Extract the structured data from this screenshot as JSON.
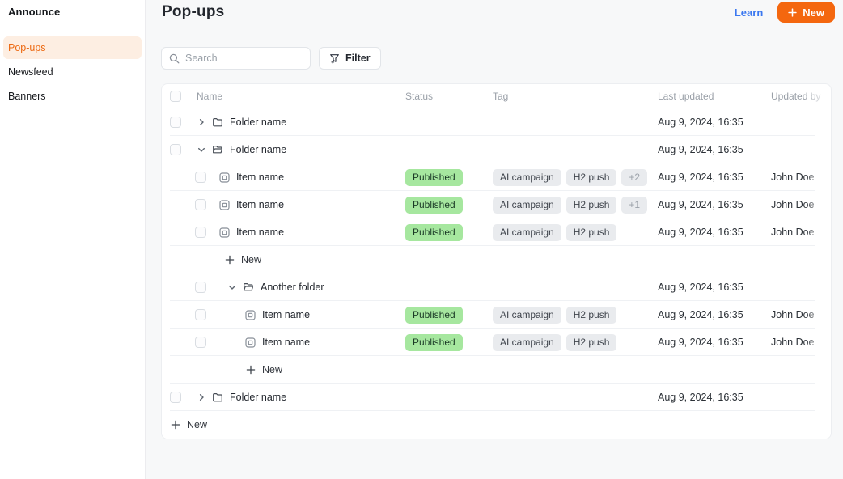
{
  "sidebar": {
    "app_title": "Announce",
    "items": [
      {
        "label": "Pop-ups",
        "active": true
      },
      {
        "label": "Newsfeed",
        "active": false
      },
      {
        "label": "Banners",
        "active": false
      }
    ]
  },
  "header": {
    "title": "Pop-ups",
    "learn_label": "Learn",
    "new_button_label": "New"
  },
  "toolbar": {
    "search_placeholder": "Search",
    "filter_label": "Filter"
  },
  "table": {
    "columns": [
      "Name",
      "Status",
      "Tag",
      "Last updated",
      "Updated by"
    ],
    "rows": [
      {
        "type": "folder",
        "state": "collapsed",
        "name": "Folder name",
        "level": 0,
        "last_updated": "Aug 9, 2024, 16:35"
      },
      {
        "type": "folder",
        "state": "expanded",
        "name": "Folder name",
        "level": 0,
        "last_updated": "Aug 9, 2024, 16:35"
      },
      {
        "type": "item",
        "name": "Item name",
        "level": 1,
        "status": "Published",
        "tags": [
          "AI campaign",
          "H2 push"
        ],
        "tag_overflow": "+2",
        "last_updated": "Aug 9, 2024, 16:35",
        "updated_by": "John Doe"
      },
      {
        "type": "item",
        "name": "Item name",
        "level": 1,
        "status": "Published",
        "tags": [
          "AI campaign",
          "H2 push"
        ],
        "tag_overflow": "+1",
        "last_updated": "Aug 9, 2024, 16:35",
        "updated_by": "John Doe"
      },
      {
        "type": "item",
        "name": "Item name",
        "level": 1,
        "status": "Published",
        "tags": [
          "AI campaign",
          "H2 push"
        ],
        "last_updated": "Aug 9, 2024, 16:35",
        "updated_by": "John Doe"
      },
      {
        "type": "new",
        "label": "New",
        "level": 1
      },
      {
        "type": "folder",
        "state": "expanded",
        "name": "Another folder",
        "level": 1,
        "last_updated": "Aug 9, 2024, 16:35"
      },
      {
        "type": "item",
        "name": "Item name",
        "level": 2,
        "status": "Published",
        "tags": [
          "AI campaign",
          "H2 push"
        ],
        "last_updated": "Aug 9, 2024, 16:35",
        "updated_by": "John Doe"
      },
      {
        "type": "item",
        "name": "Item name",
        "level": 2,
        "status": "Published",
        "tags": [
          "AI campaign",
          "H2 push"
        ],
        "last_updated": "Aug 9, 2024, 16:35",
        "updated_by": "John Doe"
      },
      {
        "type": "new",
        "label": "New",
        "level": 2
      },
      {
        "type": "folder",
        "state": "collapsed",
        "name": "Folder name",
        "level": 0,
        "last_updated": "Aug 9, 2024, 16:35"
      },
      {
        "type": "new",
        "label": "New",
        "level": 0
      }
    ]
  },
  "icons": {
    "search": "magnifier",
    "filter": "funnel-plus",
    "new_button": "plus",
    "chevron_collapsed": "chevron-right",
    "chevron_expanded": "chevron-down",
    "folder_closed": "folder",
    "folder_expanded": "folder-open",
    "item": "popup-window",
    "tree_add": "plus"
  },
  "colors": {
    "accent_orange": "#F4670F",
    "sidebar_active_bg": "#FDEEE2",
    "sidebar_active_text": "#ED6A13",
    "learn_link": "#3B78F0",
    "published_bg": "#A6E79F",
    "published_text": "#1B3A26",
    "tag_bg": "#E9EBEE",
    "tag_text": "#3F444C",
    "tag_overflow_text": "#9AA0A8",
    "page_bg": "#F7F8F9",
    "card_bg": "#FFFFFF"
  }
}
